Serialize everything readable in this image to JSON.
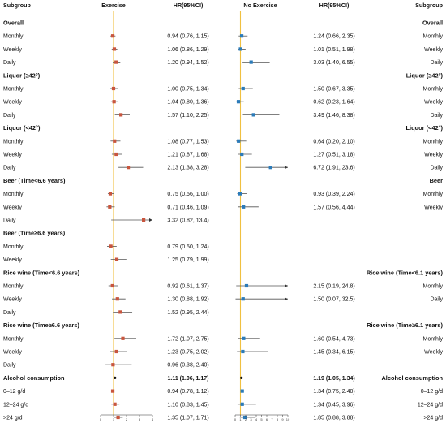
{
  "chart_data": {
    "type": "forest",
    "colors": {
      "exercise_marker": "#c8553d",
      "no_exercise_marker": "#2b7bb9",
      "reference_line": "#f0c040",
      "overall_marker": "#111111"
    },
    "headers": {
      "left_subgroup": "Subgroup",
      "exercise": "Exercise",
      "left_hr": "HR(95%CI)",
      "no_exercise": "No Exercise",
      "right_hr": "HR(95%CI)",
      "right_subgroup": "Subgroup"
    },
    "exercise_axis": {
      "min": 0,
      "max": 4,
      "ticks": [
        "0",
        "1",
        "2",
        "3",
        "4"
      ],
      "ref": 1
    },
    "no_exercise_axis": {
      "min": 0,
      "max": 10,
      "ticks": [
        "0",
        "1",
        "2",
        "3",
        "4",
        "5",
        "6",
        "7",
        "8",
        "9",
        "10"
      ],
      "ref": 1
    },
    "rows": [
      {
        "type": "group",
        "left": "Overall",
        "right": "Overall"
      },
      {
        "type": "data",
        "left": "Monthly",
        "ex": {
          "hr": 0.94,
          "lo": 0.76,
          "hi": 1.15,
          "text": "0.94 (0.76, 1.15)"
        },
        "nex": {
          "hr": 1.24,
          "lo": 0.66,
          "hi": 2.35,
          "text": "1.24 (0.66, 2.35)"
        },
        "right": "Monthly"
      },
      {
        "type": "data",
        "left": "Weekly",
        "ex": {
          "hr": 1.06,
          "lo": 0.86,
          "hi": 1.29,
          "text": "1.06 (0.86, 1.29)"
        },
        "nex": {
          "hr": 1.01,
          "lo": 0.51,
          "hi": 1.98,
          "text": "1.01 (0.51, 1.98)"
        },
        "right": "Weekly"
      },
      {
        "type": "data",
        "left": "Daily",
        "ex": {
          "hr": 1.2,
          "lo": 0.94,
          "hi": 1.52,
          "text": "1.20 (0.94, 1.52)"
        },
        "nex": {
          "hr": 3.03,
          "lo": 1.4,
          "hi": 6.55,
          "text": "3.03 (1.40, 6.55)"
        },
        "right": "Daily"
      },
      {
        "type": "group",
        "left": "Liquor (≥42°)",
        "right": "Liquor (≥42°)"
      },
      {
        "type": "data",
        "left": "Monthly",
        "ex": {
          "hr": 1.0,
          "lo": 0.75,
          "hi": 1.34,
          "text": "1.00 (0.75, 1.34)"
        },
        "nex": {
          "hr": 1.5,
          "lo": 0.67,
          "hi": 3.35,
          "text": "1.50 (0.67, 3.35)"
        },
        "right": "Monthly"
      },
      {
        "type": "data",
        "left": "Weekly",
        "ex": {
          "hr": 1.04,
          "lo": 0.8,
          "hi": 1.36,
          "text": "1.04 (0.80, 1.36)"
        },
        "nex": {
          "hr": 0.62,
          "lo": 0.23,
          "hi": 1.64,
          "text": "0.62 (0.23, 1.64)"
        },
        "right": "Weekly"
      },
      {
        "type": "data",
        "left": "Daily",
        "ex": {
          "hr": 1.57,
          "lo": 1.1,
          "hi": 2.25,
          "text": "1.57 (1.10, 2.25)"
        },
        "nex": {
          "hr": 3.49,
          "lo": 1.46,
          "hi": 8.38,
          "text": "3.49 (1.46, 8.38)"
        },
        "right": "Daily"
      },
      {
        "type": "group",
        "left": "Liquor (<42°)",
        "right": "Liquor (<42°)"
      },
      {
        "type": "data",
        "left": "Monthly",
        "ex": {
          "hr": 1.08,
          "lo": 0.77,
          "hi": 1.53,
          "text": "1.08 (0.77, 1.53)"
        },
        "nex": {
          "hr": 0.64,
          "lo": 0.2,
          "hi": 2.1,
          "text": "0.64 (0.20, 2.10)"
        },
        "right": "Monthly"
      },
      {
        "type": "data",
        "left": "Weekly",
        "ex": {
          "hr": 1.21,
          "lo": 0.87,
          "hi": 1.68,
          "text": "1.21 (0.87, 1.68)"
        },
        "nex": {
          "hr": 1.27,
          "lo": 0.51,
          "hi": 3.18,
          "text": "1.27 (0.51, 3.18)"
        },
        "right": "Weekly"
      },
      {
        "type": "data",
        "left": "Daily",
        "ex": {
          "hr": 2.13,
          "lo": 1.38,
          "hi": 3.28,
          "text": "2.13 (1.38, 3.28)"
        },
        "nex": {
          "hr": 6.72,
          "lo": 1.91,
          "hi": 23.6,
          "text": "6.72 (1.91, 23.6)"
        },
        "right": "Daily"
      },
      {
        "type": "group",
        "left": "Beer (Time<6.6 years)",
        "right": "Beer"
      },
      {
        "type": "data",
        "left": "Monthly",
        "ex": {
          "hr": 0.75,
          "lo": 0.56,
          "hi": 1.0,
          "text": "0.75 (0.56, 1.00)"
        },
        "nex": {
          "hr": 0.93,
          "lo": 0.39,
          "hi": 2.24,
          "text": "0.93 (0.39, 2.24)"
        },
        "right": "Monthly"
      },
      {
        "type": "data",
        "left": "Weekly",
        "ex": {
          "hr": 0.71,
          "lo": 0.46,
          "hi": 1.09,
          "text": "0.71 (0.46, 1.09)"
        },
        "nex": {
          "hr": 1.57,
          "lo": 0.56,
          "hi": 4.44,
          "text": "1.57 (0.56, 4.44)"
        },
        "right": "Weekly"
      },
      {
        "type": "data",
        "left": "Daily",
        "ex": {
          "hr": 3.32,
          "lo": 0.82,
          "hi": 13.4,
          "text": "3.32 (0.82, 13.4)"
        },
        "nex": null,
        "right": ""
      },
      {
        "type": "group",
        "left": "Beer (Time≥6.6 years)",
        "right": ""
      },
      {
        "type": "data",
        "left": "Monthly",
        "ex": {
          "hr": 0.79,
          "lo": 0.5,
          "hi": 1.24,
          "text": "0.79 (0.50, 1.24)"
        },
        "nex": null,
        "right": ""
      },
      {
        "type": "data",
        "left": "Weekly",
        "ex": {
          "hr": 1.25,
          "lo": 0.79,
          "hi": 1.99,
          "text": "1.25 (0.79, 1.99)"
        },
        "nex": null,
        "right": ""
      },
      {
        "type": "group",
        "left": "Rice wine (Time<6.6 years)",
        "right": "Rice wine (Time<6.1 years)"
      },
      {
        "type": "data",
        "left": "Monthly",
        "ex": {
          "hr": 0.92,
          "lo": 0.61,
          "hi": 1.37,
          "text": "0.92 (0.61, 1.37)"
        },
        "nex": {
          "hr": 2.15,
          "lo": 0.19,
          "hi": 24.8,
          "text": "2.15 (0.19, 24.8)"
        },
        "right": "Monthly"
      },
      {
        "type": "data",
        "left": "Weekly",
        "ex": {
          "hr": 1.3,
          "lo": 0.88,
          "hi": 1.92,
          "text": "1.30 (0.88, 1.92)"
        },
        "nex": {
          "hr": 1.5,
          "lo": 0.07,
          "hi": 32.5,
          "text": "1.50 (0.07, 32.5)"
        },
        "right": "Daily"
      },
      {
        "type": "data",
        "left": "Daily",
        "ex": {
          "hr": 1.52,
          "lo": 0.95,
          "hi": 2.44,
          "text": "1.52 (0.95, 2.44)"
        },
        "nex": null,
        "right": ""
      },
      {
        "type": "group",
        "left": "Rice wine (Time≥6.6 years)",
        "right": "Rice wine (Time≥6.1 years)"
      },
      {
        "type": "data",
        "left": "Monthly",
        "ex": {
          "hr": 1.72,
          "lo": 1.07,
          "hi": 2.75,
          "text": "1.72 (1.07, 2.75)"
        },
        "nex": {
          "hr": 1.6,
          "lo": 0.54,
          "hi": 4.73,
          "text": "1.60 (0.54, 4.73)"
        },
        "right": "Monthly"
      },
      {
        "type": "data",
        "left": "Weekly",
        "ex": {
          "hr": 1.23,
          "lo": 0.75,
          "hi": 2.02,
          "text": "1.23 (0.75, 2.02)"
        },
        "nex": {
          "hr": 1.45,
          "lo": 0.34,
          "hi": 6.15,
          "text": "1.45 (0.34, 6.15)"
        },
        "right": "Weekly"
      },
      {
        "type": "data",
        "left": "Daily",
        "ex": {
          "hr": 0.96,
          "lo": 0.38,
          "hi": 2.4,
          "text": "0.96 (0.38, 2.40)"
        },
        "nex": null,
        "right": ""
      },
      {
        "type": "overall",
        "left": "Alcohol consumption",
        "ex": {
          "hr": 1.11,
          "lo": 1.06,
          "hi": 1.17,
          "text": "1.11 (1.06, 1.17)"
        },
        "nex": {
          "hr": 1.19,
          "lo": 1.05,
          "hi": 1.34,
          "text": "1.19 (1.05, 1.34)"
        },
        "right": "Alcohol consumption"
      },
      {
        "type": "data",
        "left": "0–12 g/d",
        "ex": {
          "hr": 0.94,
          "lo": 0.78,
          "hi": 1.12,
          "text": "0.94 (0.78, 1.12)"
        },
        "nex": {
          "hr": 1.34,
          "lo": 0.75,
          "hi": 2.4,
          "text": "1.34 (0.75, 2.40)"
        },
        "right": "0–12 g/d"
      },
      {
        "type": "data",
        "left": "12–24 g/d",
        "ex": {
          "hr": 1.1,
          "lo": 0.83,
          "hi": 1.45,
          "text": "1.10 (0.83, 1.45)"
        },
        "nex": {
          "hr": 1.34,
          "lo": 0.45,
          "hi": 3.96,
          "text": "1.34 (0.45, 3.96)"
        },
        "right": "12–24 g/d"
      },
      {
        "type": "data",
        "left": ">24 g/d",
        "ex": {
          "hr": 1.35,
          "lo": 1.07,
          "hi": 1.71,
          "text": "1.35 (1.07, 1.71)"
        },
        "nex": {
          "hr": 1.85,
          "lo": 0.88,
          "hi": 3.88,
          "text": "1.85 (0.88, 3.88)"
        },
        "right": ">24 g/d"
      }
    ]
  }
}
